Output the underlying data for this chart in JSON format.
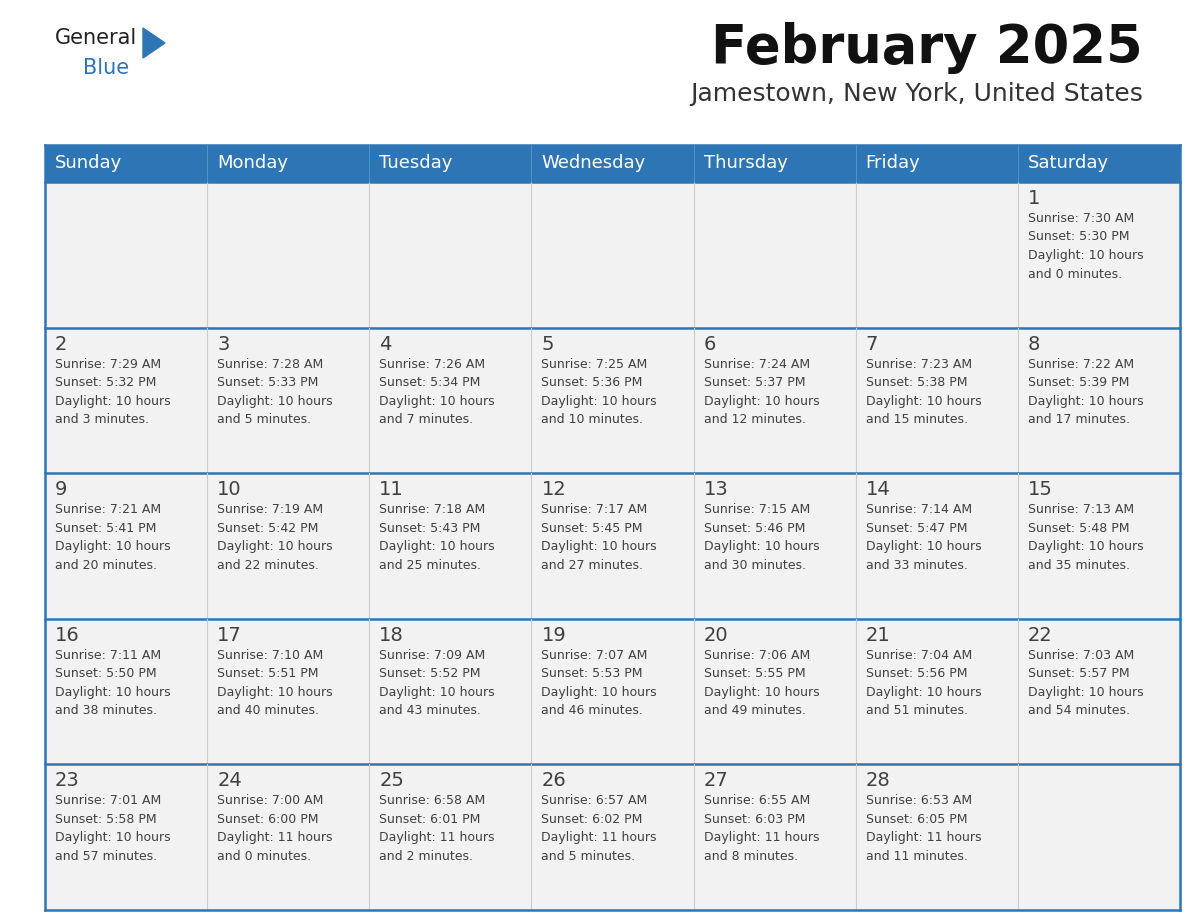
{
  "title": "February 2025",
  "subtitle": "Jamestown, New York, United States",
  "header_bg": "#2E75B6",
  "header_text_color": "#FFFFFF",
  "row_separator_color": "#2E75B6",
  "col_separator_color": "#CCCCCC",
  "day_number_color": "#404040",
  "info_text_color": "#404040",
  "cell_bg_color": "#F2F2F2",
  "background_color": "#FFFFFF",
  "days_of_week": [
    "Sunday",
    "Monday",
    "Tuesday",
    "Wednesday",
    "Thursday",
    "Friday",
    "Saturday"
  ],
  "weeks": [
    [
      {
        "day": null,
        "info": null
      },
      {
        "day": null,
        "info": null
      },
      {
        "day": null,
        "info": null
      },
      {
        "day": null,
        "info": null
      },
      {
        "day": null,
        "info": null
      },
      {
        "day": null,
        "info": null
      },
      {
        "day": "1",
        "info": "Sunrise: 7:30 AM\nSunset: 5:30 PM\nDaylight: 10 hours\nand 0 minutes."
      }
    ],
    [
      {
        "day": "2",
        "info": "Sunrise: 7:29 AM\nSunset: 5:32 PM\nDaylight: 10 hours\nand 3 minutes."
      },
      {
        "day": "3",
        "info": "Sunrise: 7:28 AM\nSunset: 5:33 PM\nDaylight: 10 hours\nand 5 minutes."
      },
      {
        "day": "4",
        "info": "Sunrise: 7:26 AM\nSunset: 5:34 PM\nDaylight: 10 hours\nand 7 minutes."
      },
      {
        "day": "5",
        "info": "Sunrise: 7:25 AM\nSunset: 5:36 PM\nDaylight: 10 hours\nand 10 minutes."
      },
      {
        "day": "6",
        "info": "Sunrise: 7:24 AM\nSunset: 5:37 PM\nDaylight: 10 hours\nand 12 minutes."
      },
      {
        "day": "7",
        "info": "Sunrise: 7:23 AM\nSunset: 5:38 PM\nDaylight: 10 hours\nand 15 minutes."
      },
      {
        "day": "8",
        "info": "Sunrise: 7:22 AM\nSunset: 5:39 PM\nDaylight: 10 hours\nand 17 minutes."
      }
    ],
    [
      {
        "day": "9",
        "info": "Sunrise: 7:21 AM\nSunset: 5:41 PM\nDaylight: 10 hours\nand 20 minutes."
      },
      {
        "day": "10",
        "info": "Sunrise: 7:19 AM\nSunset: 5:42 PM\nDaylight: 10 hours\nand 22 minutes."
      },
      {
        "day": "11",
        "info": "Sunrise: 7:18 AM\nSunset: 5:43 PM\nDaylight: 10 hours\nand 25 minutes."
      },
      {
        "day": "12",
        "info": "Sunrise: 7:17 AM\nSunset: 5:45 PM\nDaylight: 10 hours\nand 27 minutes."
      },
      {
        "day": "13",
        "info": "Sunrise: 7:15 AM\nSunset: 5:46 PM\nDaylight: 10 hours\nand 30 minutes."
      },
      {
        "day": "14",
        "info": "Sunrise: 7:14 AM\nSunset: 5:47 PM\nDaylight: 10 hours\nand 33 minutes."
      },
      {
        "day": "15",
        "info": "Sunrise: 7:13 AM\nSunset: 5:48 PM\nDaylight: 10 hours\nand 35 minutes."
      }
    ],
    [
      {
        "day": "16",
        "info": "Sunrise: 7:11 AM\nSunset: 5:50 PM\nDaylight: 10 hours\nand 38 minutes."
      },
      {
        "day": "17",
        "info": "Sunrise: 7:10 AM\nSunset: 5:51 PM\nDaylight: 10 hours\nand 40 minutes."
      },
      {
        "day": "18",
        "info": "Sunrise: 7:09 AM\nSunset: 5:52 PM\nDaylight: 10 hours\nand 43 minutes."
      },
      {
        "day": "19",
        "info": "Sunrise: 7:07 AM\nSunset: 5:53 PM\nDaylight: 10 hours\nand 46 minutes."
      },
      {
        "day": "20",
        "info": "Sunrise: 7:06 AM\nSunset: 5:55 PM\nDaylight: 10 hours\nand 49 minutes."
      },
      {
        "day": "21",
        "info": "Sunrise: 7:04 AM\nSunset: 5:56 PM\nDaylight: 10 hours\nand 51 minutes."
      },
      {
        "day": "22",
        "info": "Sunrise: 7:03 AM\nSunset: 5:57 PM\nDaylight: 10 hours\nand 54 minutes."
      }
    ],
    [
      {
        "day": "23",
        "info": "Sunrise: 7:01 AM\nSunset: 5:58 PM\nDaylight: 10 hours\nand 57 minutes."
      },
      {
        "day": "24",
        "info": "Sunrise: 7:00 AM\nSunset: 6:00 PM\nDaylight: 11 hours\nand 0 minutes."
      },
      {
        "day": "25",
        "info": "Sunrise: 6:58 AM\nSunset: 6:01 PM\nDaylight: 11 hours\nand 2 minutes."
      },
      {
        "day": "26",
        "info": "Sunrise: 6:57 AM\nSunset: 6:02 PM\nDaylight: 11 hours\nand 5 minutes."
      },
      {
        "day": "27",
        "info": "Sunrise: 6:55 AM\nSunset: 6:03 PM\nDaylight: 11 hours\nand 8 minutes."
      },
      {
        "day": "28",
        "info": "Sunrise: 6:53 AM\nSunset: 6:05 PM\nDaylight: 11 hours\nand 11 minutes."
      },
      {
        "day": null,
        "info": null
      }
    ]
  ],
  "logo_general_color": "#222222",
  "logo_blue_color": "#2E75B6",
  "logo_triangle_color": "#2E75B6",
  "title_fontsize": 38,
  "subtitle_fontsize": 18,
  "header_fontsize": 13,
  "day_num_fontsize": 14,
  "info_fontsize": 9
}
